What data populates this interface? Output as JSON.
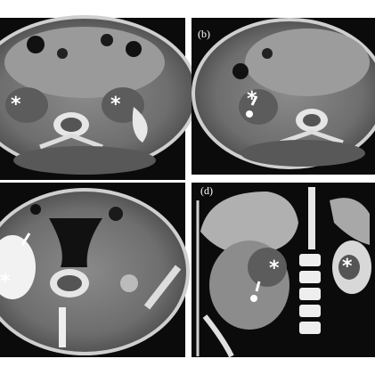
{
  "panels": [
    {
      "markers": [
        "*",
        "*"
      ]
    },
    {
      "label": "(b)",
      "markers": [
        "*"
      ]
    },
    {
      "markers": [
        "*"
      ]
    },
    {
      "label": "(d)",
      "markers": [
        "*",
        "*"
      ]
    }
  ]
}
